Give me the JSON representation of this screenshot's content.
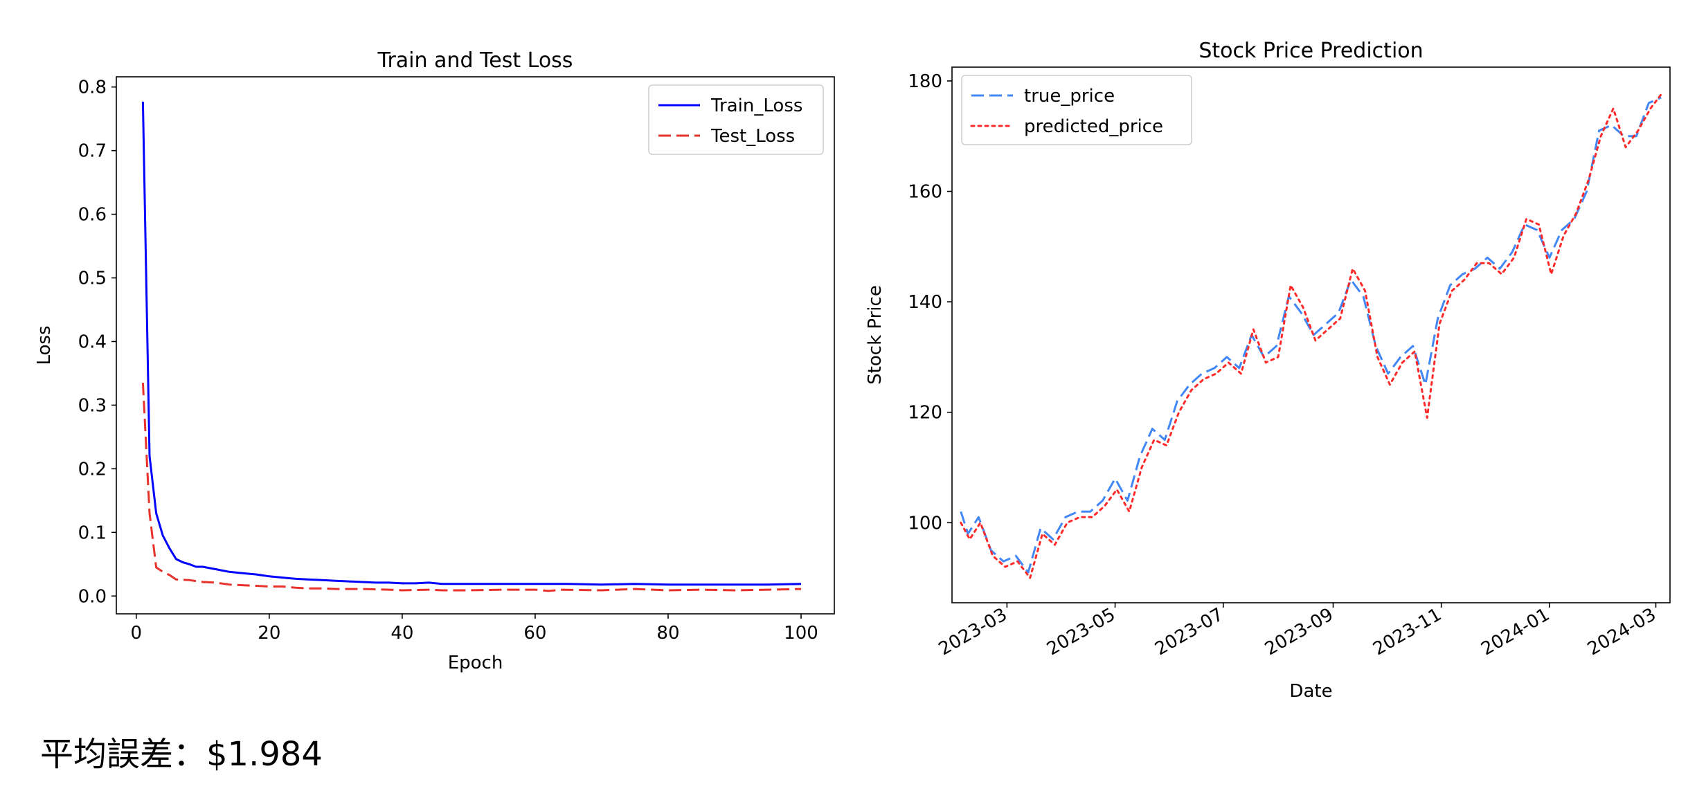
{
  "summary_text": "平均誤差：$1.984",
  "colors": {
    "train": "#0000ff",
    "test": "#e8332d",
    "true_price": "#4287f5",
    "predicted_price": "#ff2a2a"
  },
  "chart_data": [
    {
      "type": "line",
      "title": "Train and Test Loss",
      "xlabel": "Epoch",
      "ylabel": "Loss",
      "xlim": [
        -3,
        105
      ],
      "ylim": [
        -0.028,
        0.816
      ],
      "xticks": [
        "0",
        "20",
        "40",
        "60",
        "80",
        "100"
      ],
      "yticks": [
        "0.0",
        "0.1",
        "0.2",
        "0.3",
        "0.4",
        "0.5",
        "0.6",
        "0.7",
        "0.8"
      ],
      "legend_position": "top-right",
      "series": [
        {
          "name": "Train_Loss",
          "style": "solid",
          "points": [
            [
              1,
              0.777
            ],
            [
              2,
              0.22
            ],
            [
              3,
              0.13
            ],
            [
              4,
              0.095
            ],
            [
              5,
              0.075
            ],
            [
              6,
              0.058
            ],
            [
              7,
              0.053
            ],
            [
              8,
              0.05
            ],
            [
              9,
              0.046
            ],
            [
              10,
              0.046
            ],
            [
              12,
              0.042
            ],
            [
              14,
              0.038
            ],
            [
              16,
              0.036
            ],
            [
              18,
              0.034
            ],
            [
              20,
              0.031
            ],
            [
              22,
              0.029
            ],
            [
              24,
              0.027
            ],
            [
              26,
              0.026
            ],
            [
              28,
              0.025
            ],
            [
              30,
              0.024
            ],
            [
              32,
              0.023
            ],
            [
              34,
              0.022
            ],
            [
              36,
              0.021
            ],
            [
              38,
              0.021
            ],
            [
              40,
              0.02
            ],
            [
              42,
              0.02
            ],
            [
              44,
              0.021
            ],
            [
              46,
              0.019
            ],
            [
              50,
              0.019
            ],
            [
              55,
              0.019
            ],
            [
              60,
              0.019
            ],
            [
              65,
              0.019
            ],
            [
              70,
              0.018
            ],
            [
              75,
              0.019
            ],
            [
              80,
              0.018
            ],
            [
              85,
              0.018
            ],
            [
              90,
              0.018
            ],
            [
              95,
              0.018
            ],
            [
              100,
              0.019
            ]
          ]
        },
        {
          "name": "Test_Loss",
          "style": "dashed",
          "points": [
            [
              1,
              0.335
            ],
            [
              2,
              0.13
            ],
            [
              3,
              0.045
            ],
            [
              4,
              0.038
            ],
            [
              5,
              0.033
            ],
            [
              6,
              0.026
            ],
            [
              8,
              0.025
            ],
            [
              10,
              0.022
            ],
            [
              12,
              0.021
            ],
            [
              14,
              0.018
            ],
            [
              16,
              0.017
            ],
            [
              18,
              0.016
            ],
            [
              20,
              0.015
            ],
            [
              22,
              0.015
            ],
            [
              24,
              0.013
            ],
            [
              26,
              0.012
            ],
            [
              28,
              0.012
            ],
            [
              30,
              0.011
            ],
            [
              34,
              0.011
            ],
            [
              38,
              0.01
            ],
            [
              40,
              0.009
            ],
            [
              44,
              0.01
            ],
            [
              46,
              0.009
            ],
            [
              50,
              0.009
            ],
            [
              55,
              0.01
            ],
            [
              60,
              0.01
            ],
            [
              62,
              0.008
            ],
            [
              64,
              0.01
            ],
            [
              70,
              0.009
            ],
            [
              75,
              0.011
            ],
            [
              80,
              0.009
            ],
            [
              85,
              0.01
            ],
            [
              90,
              0.009
            ],
            [
              95,
              0.01
            ],
            [
              100,
              0.011
            ]
          ]
        }
      ]
    },
    {
      "type": "line",
      "title": "Stock Price Prediction",
      "xlabel": "Date",
      "ylabel": "Stock Price",
      "xlim": [
        "2023-01-29",
        "2024-03-09"
      ],
      "ylim": [
        85.5,
        182.5
      ],
      "xticks": [
        "2023-03",
        "2023-05",
        "2023-07",
        "2023-09",
        "2023-11",
        "2024-01",
        "2024-03"
      ],
      "yticks": [
        "100",
        "120",
        "140",
        "160",
        "180"
      ],
      "legend_position": "top-left",
      "series": [
        {
          "name": "true_price",
          "style": "dashed",
          "points": [
            [
              "2023-02-03",
              102
            ],
            [
              "2023-02-07",
              98
            ],
            [
              "2023-02-13",
              101
            ],
            [
              "2023-02-20",
              95
            ],
            [
              "2023-02-27",
              93
            ],
            [
              "2023-03-06",
              94
            ],
            [
              "2023-03-13",
              91
            ],
            [
              "2023-03-20",
              99
            ],
            [
              "2023-03-27",
              97
            ],
            [
              "2023-04-03",
              101
            ],
            [
              "2023-04-10",
              102
            ],
            [
              "2023-04-17",
              102
            ],
            [
              "2023-04-24",
              104
            ],
            [
              "2023-05-01",
              108
            ],
            [
              "2023-05-08",
              104
            ],
            [
              "2023-05-15",
              112
            ],
            [
              "2023-05-22",
              117
            ],
            [
              "2023-05-29",
              115
            ],
            [
              "2023-06-05",
              122
            ],
            [
              "2023-06-12",
              125
            ],
            [
              "2023-06-19",
              127
            ],
            [
              "2023-06-26",
              128
            ],
            [
              "2023-07-03",
              130
            ],
            [
              "2023-07-10",
              128
            ],
            [
              "2023-07-17",
              134
            ],
            [
              "2023-07-24",
              130
            ],
            [
              "2023-07-31",
              132
            ],
            [
              "2023-08-07",
              141
            ],
            [
              "2023-08-14",
              138
            ],
            [
              "2023-08-21",
              134
            ],
            [
              "2023-08-28",
              136
            ],
            [
              "2023-09-04",
              138
            ],
            [
              "2023-09-11",
              144
            ],
            [
              "2023-09-18",
              141
            ],
            [
              "2023-09-25",
              132
            ],
            [
              "2023-10-02",
              127
            ],
            [
              "2023-10-09",
              130
            ],
            [
              "2023-10-16",
              132
            ],
            [
              "2023-10-23",
              125
            ],
            [
              "2023-10-30",
              137
            ],
            [
              "2023-11-06",
              143
            ],
            [
              "2023-11-13",
              145
            ],
            [
              "2023-11-20",
              146
            ],
            [
              "2023-11-27",
              148
            ],
            [
              "2023-12-04",
              146
            ],
            [
              "2023-12-11",
              149
            ],
            [
              "2023-12-18",
              154
            ],
            [
              "2023-12-25",
              153
            ],
            [
              "2024-01-01",
              148
            ],
            [
              "2024-01-08",
              153
            ],
            [
              "2024-01-15",
              155
            ],
            [
              "2024-01-22",
              160
            ],
            [
              "2024-01-29",
              171
            ],
            [
              "2024-02-05",
              172
            ],
            [
              "2024-02-12",
              170
            ],
            [
              "2024-02-19",
              170
            ],
            [
              "2024-02-26",
              176
            ],
            [
              "2024-03-04",
              177
            ]
          ]
        },
        {
          "name": "predicted_price",
          "style": "dotted",
          "points": [
            [
              "2023-02-03",
              100
            ],
            [
              "2023-02-08",
              97
            ],
            [
              "2023-02-14",
              100
            ],
            [
              "2023-02-21",
              94
            ],
            [
              "2023-02-28",
              92
            ],
            [
              "2023-03-07",
              93
            ],
            [
              "2023-03-14",
              90
            ],
            [
              "2023-03-21",
              98
            ],
            [
              "2023-03-28",
              96
            ],
            [
              "2023-04-04",
              100
            ],
            [
              "2023-04-11",
              101
            ],
            [
              "2023-04-18",
              101
            ],
            [
              "2023-04-25",
              103
            ],
            [
              "2023-05-02",
              106
            ],
            [
              "2023-05-09",
              102
            ],
            [
              "2023-05-16",
              110
            ],
            [
              "2023-05-23",
              115
            ],
            [
              "2023-05-30",
              114
            ],
            [
              "2023-06-06",
              120
            ],
            [
              "2023-06-13",
              124
            ],
            [
              "2023-06-20",
              126
            ],
            [
              "2023-06-27",
              127
            ],
            [
              "2023-07-04",
              129
            ],
            [
              "2023-07-11",
              127
            ],
            [
              "2023-07-18",
              135
            ],
            [
              "2023-07-25",
              129
            ],
            [
              "2023-08-01",
              130
            ],
            [
              "2023-08-08",
              143
            ],
            [
              "2023-08-15",
              139
            ],
            [
              "2023-08-22",
              133
            ],
            [
              "2023-08-29",
              135
            ],
            [
              "2023-09-05",
              137
            ],
            [
              "2023-09-12",
              146
            ],
            [
              "2023-09-19",
              142
            ],
            [
              "2023-09-26",
              130
            ],
            [
              "2023-10-03",
              125
            ],
            [
              "2023-10-10",
              129
            ],
            [
              "2023-10-17",
              131
            ],
            [
              "2023-10-24",
              119
            ],
            [
              "2023-10-31",
              136
            ],
            [
              "2023-11-07",
              142
            ],
            [
              "2023-11-14",
              144
            ],
            [
              "2023-11-21",
              147
            ],
            [
              "2023-11-28",
              147
            ],
            [
              "2023-12-05",
              145
            ],
            [
              "2023-12-12",
              148
            ],
            [
              "2023-12-19",
              155
            ],
            [
              "2023-12-26",
              154
            ],
            [
              "2024-01-02",
              145
            ],
            [
              "2024-01-09",
              152
            ],
            [
              "2024-01-16",
              156
            ],
            [
              "2024-01-23",
              162
            ],
            [
              "2024-01-30",
              170
            ],
            [
              "2024-02-06",
              175
            ],
            [
              "2024-02-13",
              168
            ],
            [
              "2024-02-20",
              171
            ],
            [
              "2024-02-27",
              175
            ],
            [
              "2024-03-05",
              178
            ]
          ]
        }
      ]
    }
  ]
}
